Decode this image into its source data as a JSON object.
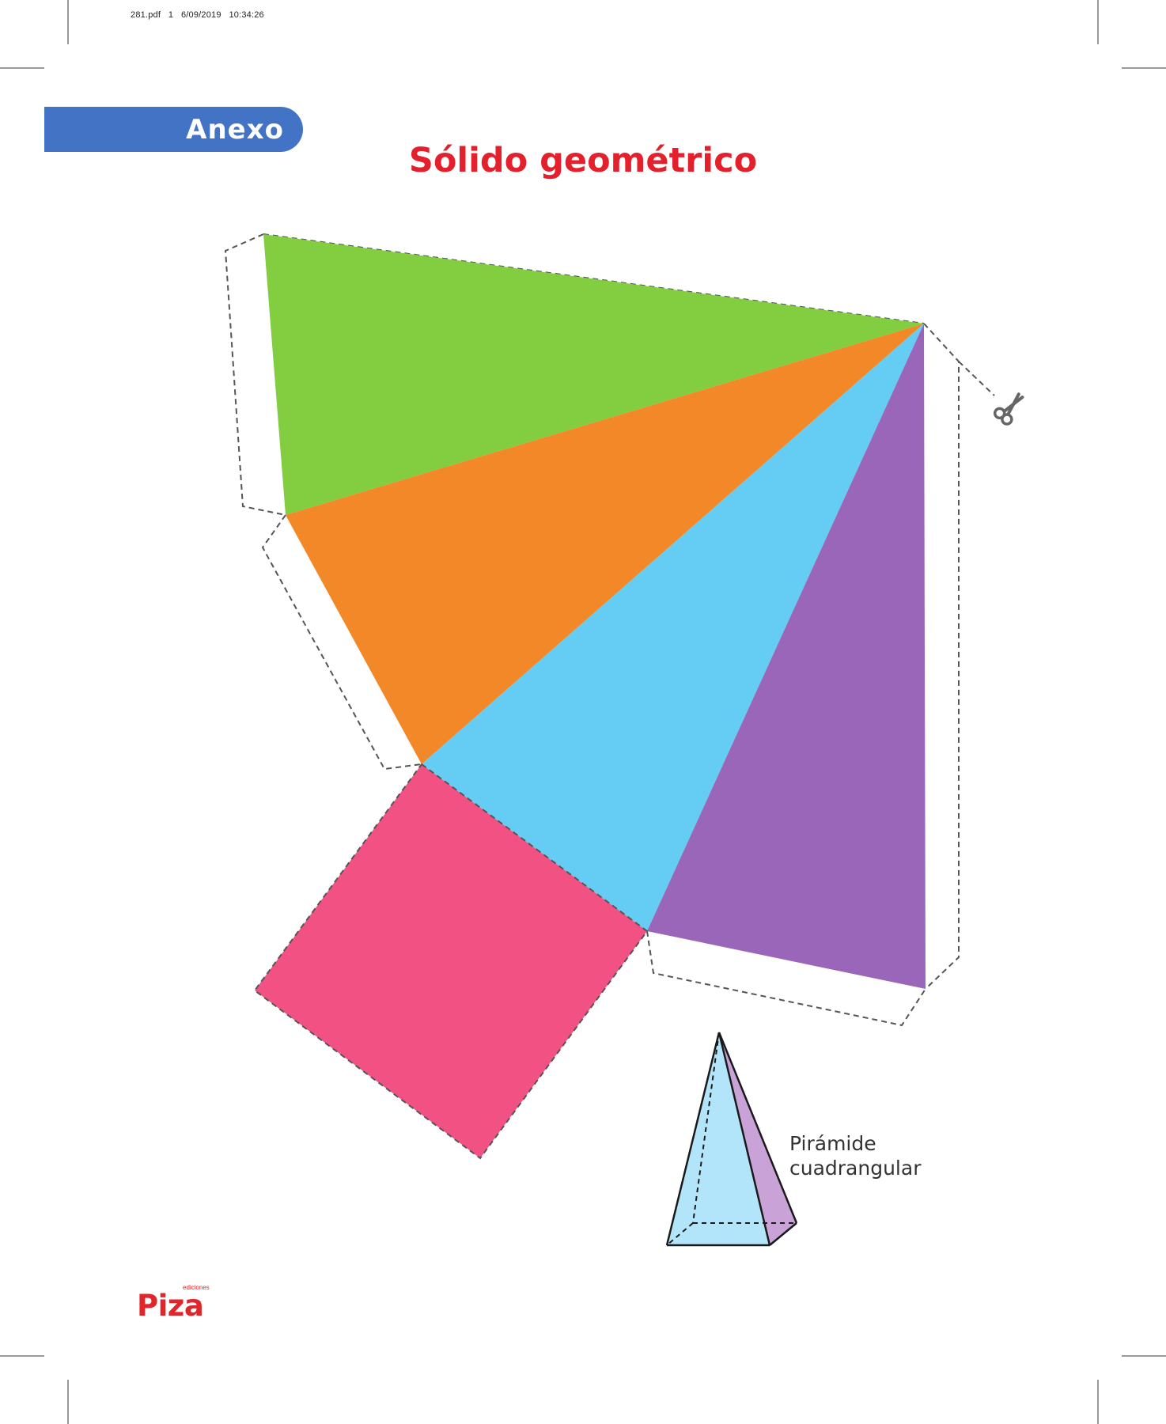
{
  "print_header": "281.pdf   1   6/09/2019   10:34:26",
  "tab": {
    "label": "Anexo"
  },
  "title": "Sólido geométrico",
  "illustration": {
    "label_line1": "Pirámide",
    "label_line2": "cuadrangular"
  },
  "logo": {
    "main": "Piza",
    "small": "ediciones"
  },
  "icons": {
    "cut": "scissors-icon"
  },
  "colors": {
    "tab_blue": "#4373c4",
    "title_red": "#e3202b",
    "face_green": "#82cd40",
    "face_orange": "#f38828",
    "face_blue": "#65cdf3",
    "face_purple": "#9a66b9",
    "base_pink": "#f15283",
    "pyramid_blue": "#b2e5f9",
    "pyramid_purple": "#c9a2d8",
    "logo_red": "#e1262b",
    "logo_yellow": "#f9c623"
  }
}
